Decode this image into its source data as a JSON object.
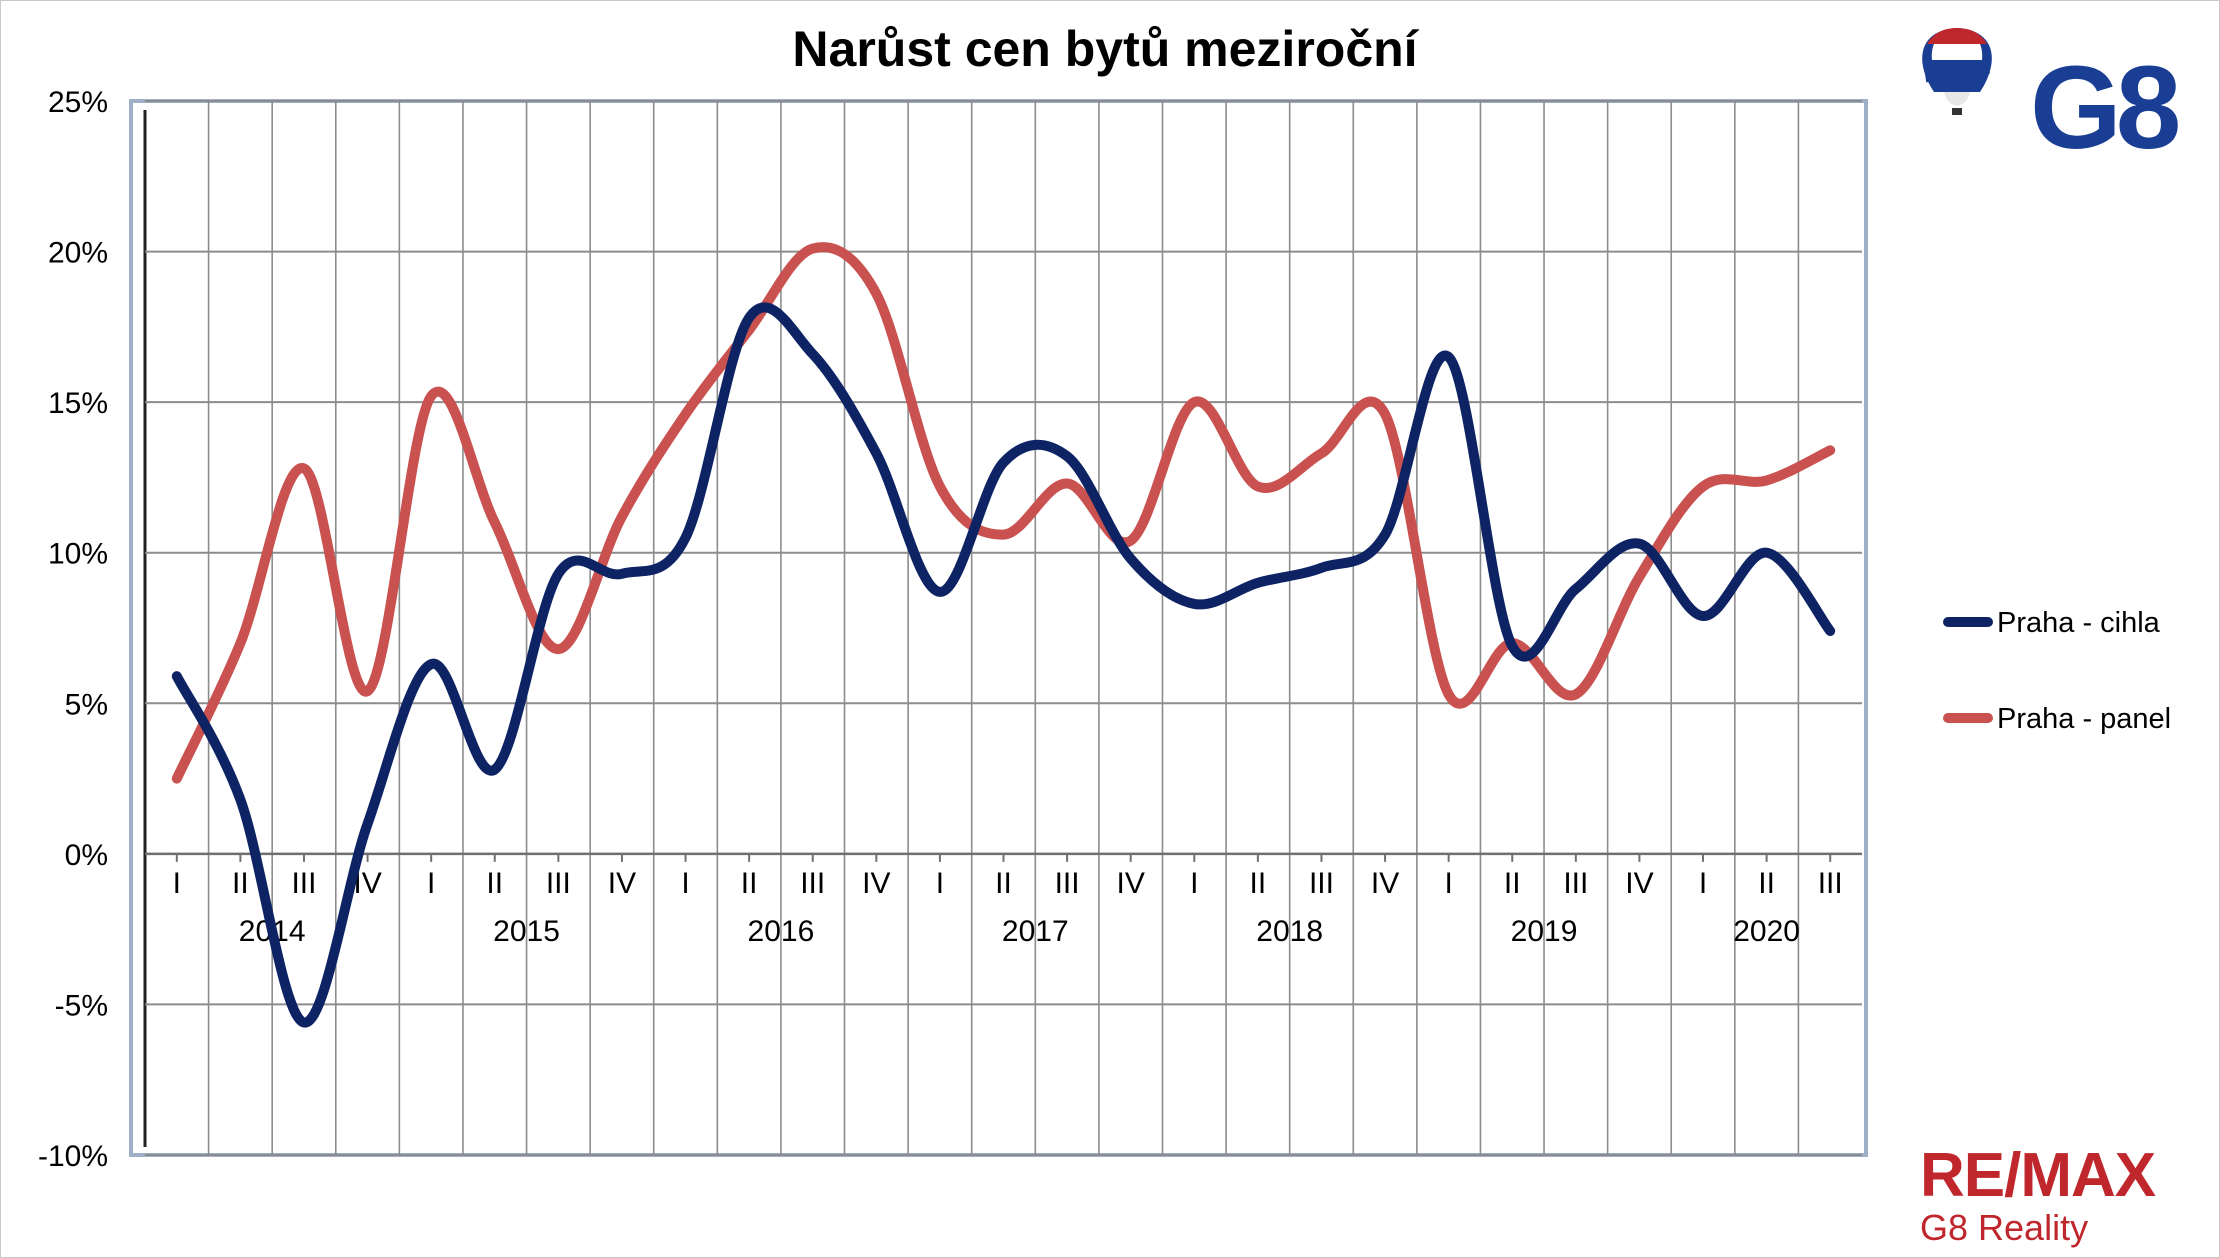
{
  "chart_data": {
    "type": "line",
    "title": "Narůst cen bytů meziroční",
    "xlabel": "",
    "ylabel": "",
    "ylim": [
      -10,
      25
    ],
    "y_ticks": [
      "25%",
      "20%",
      "15%",
      "10%",
      "5%",
      "0%",
      "-5%",
      "-10%"
    ],
    "y_tick_values": [
      25,
      20,
      15,
      10,
      5,
      0,
      -5,
      -10
    ],
    "quarters": [
      "I",
      "II",
      "III",
      "IV",
      "I",
      "II",
      "III",
      "IV",
      "I",
      "II",
      "III",
      "IV",
      "I",
      "II",
      "III",
      "IV",
      "I",
      "II",
      "III",
      "IV",
      "I",
      "II",
      "III",
      "IV",
      "I",
      "II",
      "III"
    ],
    "years": [
      {
        "label": "2014",
        "start": 0,
        "end": 3
      },
      {
        "label": "2015",
        "start": 4,
        "end": 7
      },
      {
        "label": "2016",
        "start": 8,
        "end": 11
      },
      {
        "label": "2017",
        "start": 12,
        "end": 15
      },
      {
        "label": "2018",
        "start": 16,
        "end": 19
      },
      {
        "label": "2019",
        "start": 20,
        "end": 23
      },
      {
        "label": "2020",
        "start": 24,
        "end": 26
      }
    ],
    "grid": true,
    "legend_position": "right",
    "series": [
      {
        "name": "Praha - cihla",
        "color": "#0d2364",
        "values": [
          5.9,
          1.8,
          -5.6,
          1.0,
          6.3,
          2.8,
          9.3,
          9.3,
          10.5,
          17.8,
          16.6,
          13.3,
          8.7,
          13.0,
          13.2,
          9.8,
          8.3,
          9.0,
          9.5,
          10.6,
          16.5,
          6.9,
          8.8,
          10.3,
          7.9,
          10.0,
          7.4
        ]
      },
      {
        "name": "Praha - panel",
        "color": "#c9514f",
        "values": [
          2.5,
          7.0,
          12.8,
          5.4,
          15.2,
          11.0,
          6.8,
          11.2,
          14.6,
          17.4,
          20.1,
          18.6,
          12.2,
          10.6,
          12.3,
          10.4,
          15.0,
          12.2,
          13.3,
          14.6,
          5.3,
          7.0,
          5.3,
          9.2,
          12.2,
          12.4,
          13.4
        ]
      }
    ]
  },
  "branding": {
    "logo_top_balloon_text": "RE/MAX",
    "logo_top_g8": "G8",
    "logo_bottom_remax": "RE/MAX",
    "logo_bottom_subtitle": "G8 Reality",
    "logo_brand_red": "#c0272d",
    "logo_brand_blue": "#1a3e94"
  }
}
